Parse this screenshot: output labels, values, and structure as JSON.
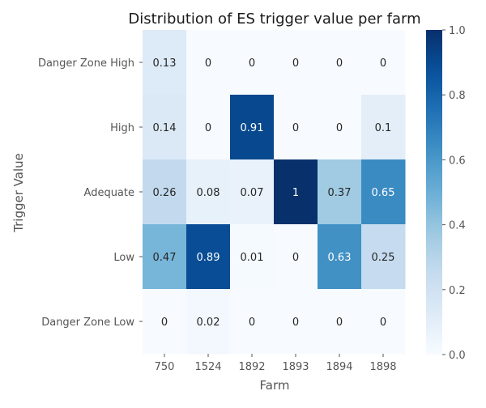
{
  "chart_data": {
    "type": "heatmap",
    "title": "Distribution of ES trigger value per farm",
    "xlabel": "Farm",
    "ylabel": "Trigger Value",
    "x_categories": [
      "750",
      "1524",
      "1892",
      "1893",
      "1894",
      "1898"
    ],
    "y_categories": [
      "Danger Zone High",
      "High",
      "Adequate",
      "Low",
      "Danger Zone Low"
    ],
    "values": [
      [
        0.13,
        0,
        0,
        0,
        0,
        0
      ],
      [
        0.14,
        0,
        0.91,
        0,
        0,
        0.1
      ],
      [
        0.26,
        0.08,
        0.07,
        1,
        0.37,
        0.65
      ],
      [
        0.47,
        0.89,
        0.01,
        0,
        0.63,
        0.25
      ],
      [
        0,
        0.02,
        0,
        0,
        0,
        0
      ]
    ],
    "value_labels": [
      [
        "0.13",
        "0",
        "0",
        "0",
        "0",
        "0"
      ],
      [
        "0.14",
        "0",
        "0.91",
        "0",
        "0",
        "0.1"
      ],
      [
        "0.26",
        "0.08",
        "0.07",
        "1",
        "0.37",
        "0.65"
      ],
      [
        "0.47",
        "0.89",
        "0.01",
        "0",
        "0.63",
        "0.25"
      ],
      [
        "0",
        "0.02",
        "0",
        "0",
        "0",
        "0"
      ]
    ],
    "colormap": "Blues",
    "vmin": 0,
    "vmax": 1,
    "colorbar": {
      "ticks": [
        0.0,
        0.2,
        0.4,
        0.6,
        0.8,
        1.0
      ],
      "tick_labels": [
        "0.0",
        "0.2",
        "0.4",
        "0.6",
        "0.8",
        "1.0"
      ]
    },
    "annotated": true,
    "grid": false
  }
}
